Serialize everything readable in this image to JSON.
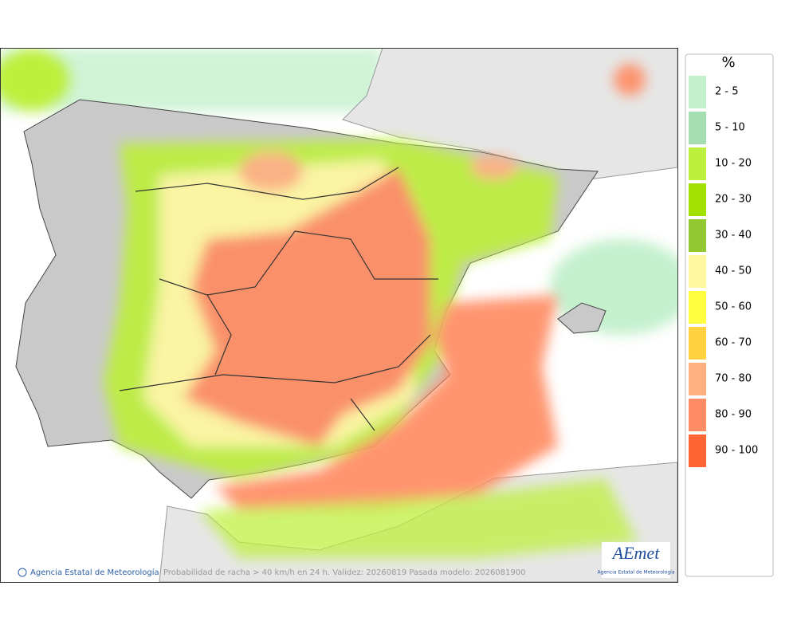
{
  "legend": {
    "title": "%",
    "items": [
      {
        "label": "2 - 5",
        "color": "#c4f0cc"
      },
      {
        "label": "5 - 10",
        "color": "#a4deb0"
      },
      {
        "label": "10 - 20",
        "color": "#bdf03c"
      },
      {
        "label": "20 - 30",
        "color": "#a2e000"
      },
      {
        "label": "30 - 40",
        "color": "#92c832"
      },
      {
        "label": "40 - 50",
        "color": "#fff8a0"
      },
      {
        "label": "50 - 60",
        "color": "#ffff40"
      },
      {
        "label": "60 - 70",
        "color": "#ffd040"
      },
      {
        "label": "70 - 80",
        "color": "#ffb080"
      },
      {
        "label": "80 - 90",
        "color": "#ff8c64"
      },
      {
        "label": "90 - 100",
        "color": "#ff6434"
      }
    ]
  },
  "footer": {
    "agency": "Agencia Estatal de Meteorología",
    "description": "Probabilidad de racha > 40 km/h en 24 h. Validez: 20260819 Pasada modelo: 2026081900"
  },
  "logo": {
    "name": "AEmet",
    "subtitle": "Agencia Estatal de Meteorología"
  }
}
